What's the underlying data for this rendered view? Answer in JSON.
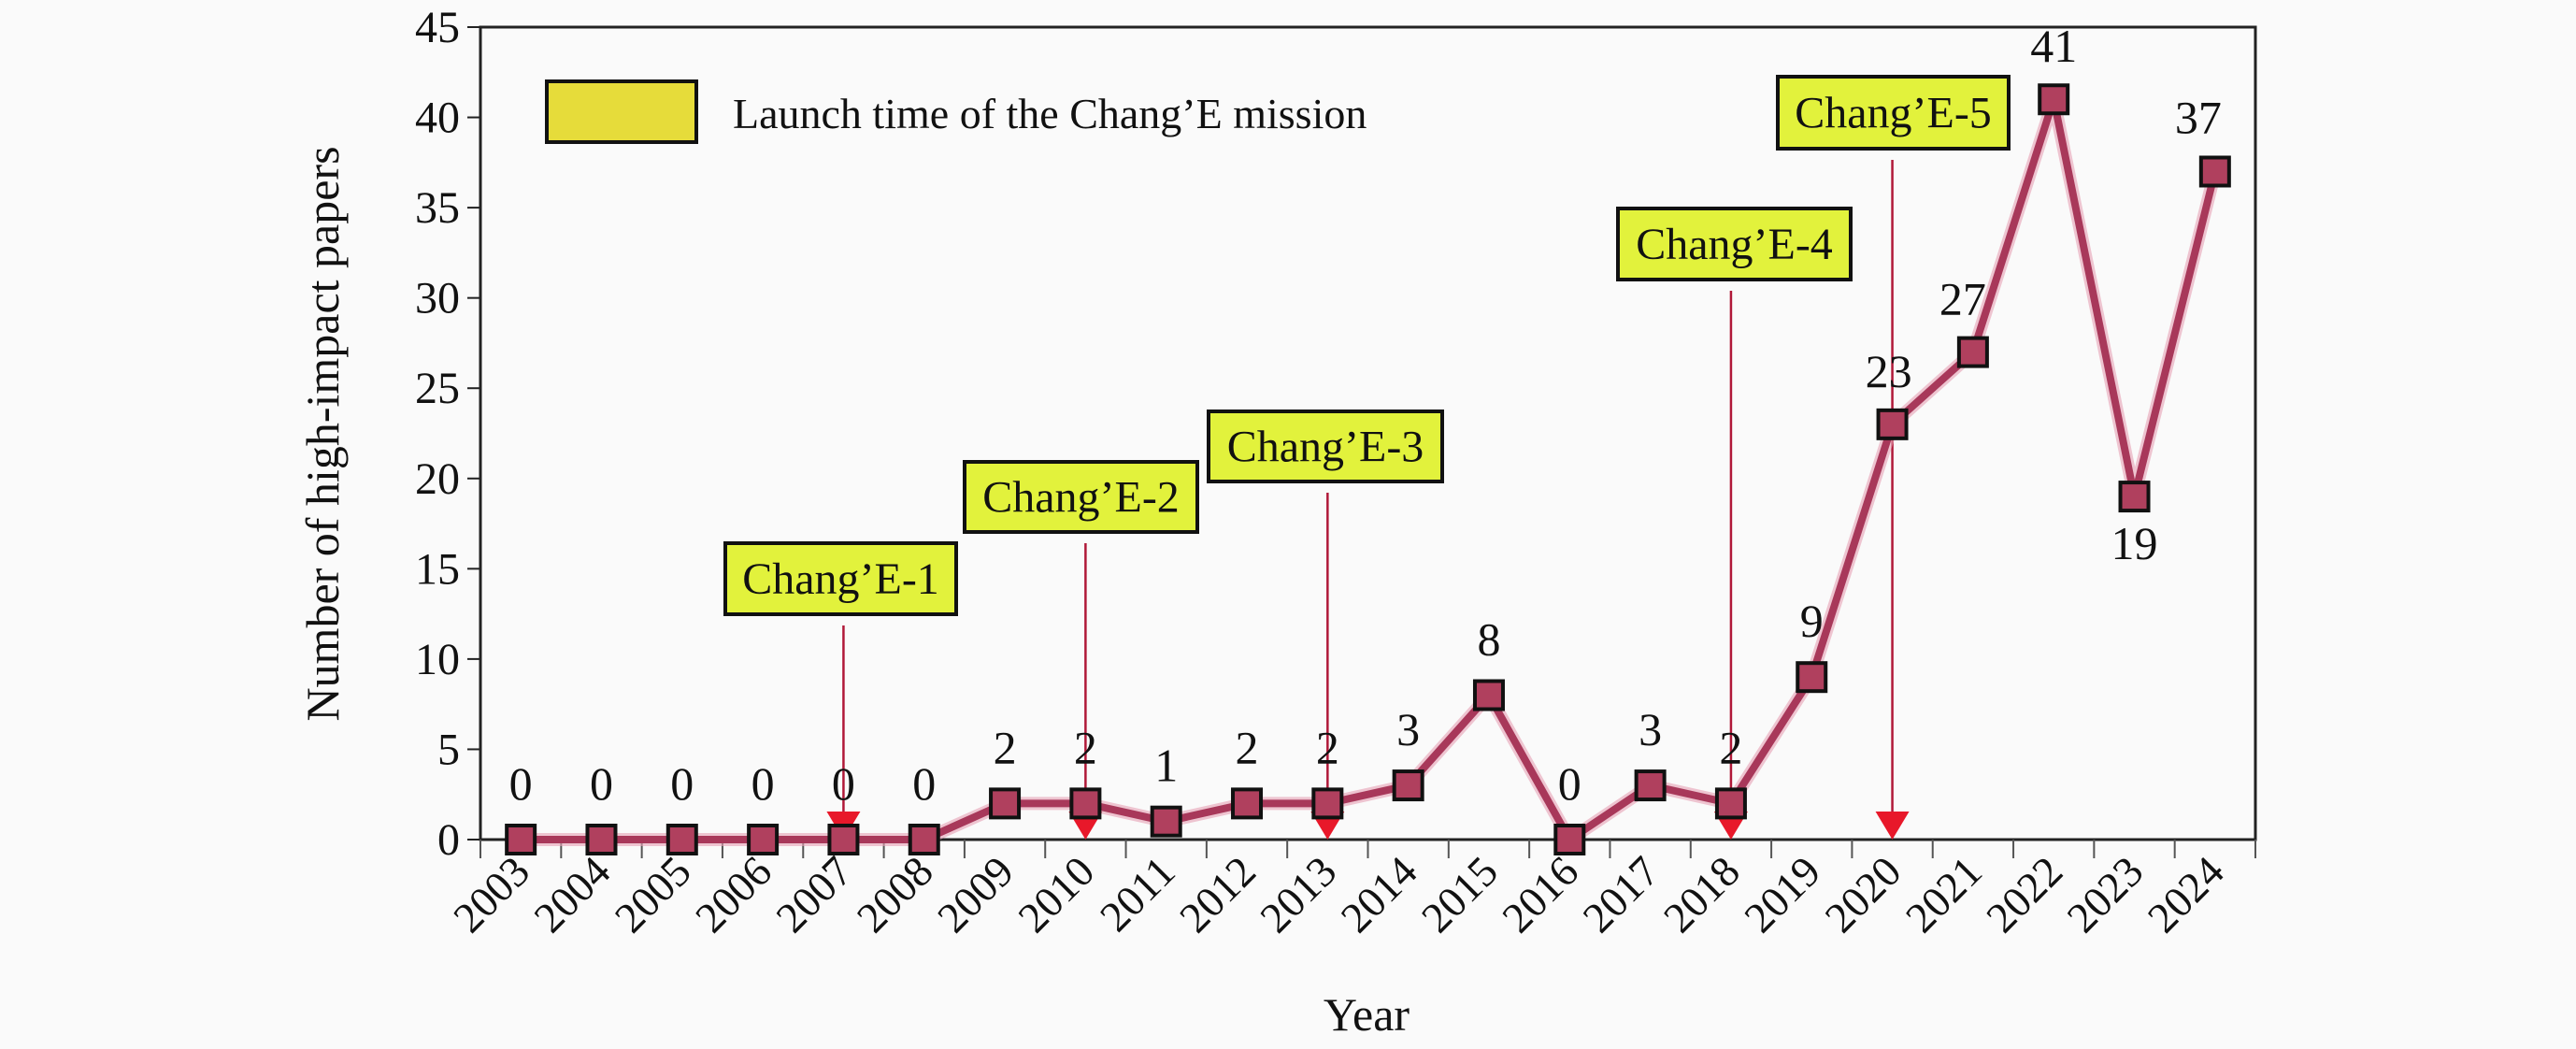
{
  "chart_data": {
    "type": "line",
    "xlabel": "Year",
    "ylabel": "Number of high-impact papers",
    "ylim": [
      0,
      45
    ],
    "yticks": [
      0,
      5,
      10,
      15,
      20,
      25,
      30,
      35,
      40,
      45
    ],
    "categories": [
      "2003",
      "2004",
      "2005",
      "2006",
      "2007",
      "2008",
      "2009",
      "2010",
      "2011",
      "2012",
      "2013",
      "2014",
      "2015",
      "2016",
      "2017",
      "2018",
      "2019",
      "2020",
      "2021",
      "2022",
      "2023",
      "2024"
    ],
    "series": [
      {
        "values": [
          0,
          0,
          0,
          0,
          0,
          0,
          2,
          2,
          1,
          2,
          2,
          3,
          8,
          0,
          3,
          2,
          9,
          23,
          27,
          41,
          19,
          37
        ]
      }
    ],
    "data_labels": true,
    "grid": false,
    "legend": {
      "label": "Launch time of the Chang’E mission",
      "position": "top-left",
      "swatch_color": "#e6dc3a"
    },
    "annotations": [
      {
        "label": "Chang’E-1",
        "year": "2007"
      },
      {
        "label": "Chang’E-2",
        "year": "2010"
      },
      {
        "label": "Chang’E-3",
        "year": "2013"
      },
      {
        "label": "Chang’E-4",
        "year": "2018"
      },
      {
        "label": "Chang’E-5",
        "year": "2020"
      }
    ],
    "colors": {
      "line": "#a8385a",
      "marker": "#b0405e",
      "arrow": "#e8182a",
      "callout": "#e2f23c"
    }
  }
}
